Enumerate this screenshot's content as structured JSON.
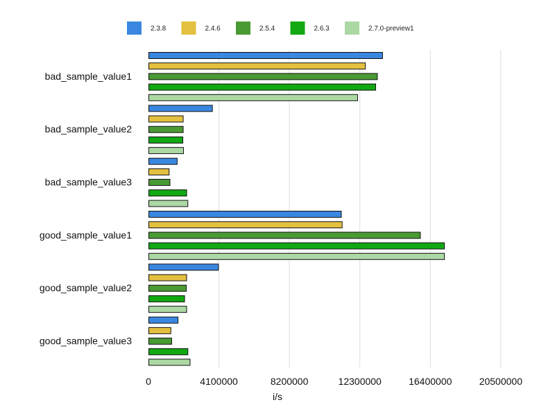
{
  "chart_data": {
    "type": "bar",
    "orientation": "horizontal",
    "title": "",
    "xlabel": "i/s",
    "ylabel": "",
    "xlim": [
      0,
      22000000
    ],
    "xticks": [
      0,
      4100000,
      8200000,
      12300000,
      16400000,
      20500000
    ],
    "xtick_labels": [
      "0",
      "4100000",
      "8200000",
      "12300000",
      "16400000",
      "20500000"
    ],
    "grid": "vertical",
    "legend_position": "top",
    "categories": [
      "bad_sample_value1",
      "bad_sample_value2",
      "bad_sample_value3",
      "good_sample_value1",
      "good_sample_value2",
      "good_sample_value3"
    ],
    "series": [
      {
        "name": "2.3.8",
        "color": "#3a87e0",
        "values": [
          13600000,
          3700000,
          1650000,
          11200000,
          4050000,
          1700000
        ]
      },
      {
        "name": "2.4.6",
        "color": "#e3c040",
        "values": [
          12600000,
          2000000,
          1180000,
          11250000,
          2200000,
          1280000
        ]
      },
      {
        "name": "2.5.4",
        "color": "#4a9a34",
        "values": [
          13300000,
          2000000,
          1230000,
          15800000,
          2180000,
          1330000
        ]
      },
      {
        "name": "2.6.3",
        "color": "#12a812",
        "values": [
          13200000,
          1980000,
          2200000,
          17200000,
          2080000,
          2270000
        ]
      },
      {
        "name": "2.7.0-preview1",
        "color": "#acd8a4",
        "values": [
          12150000,
          2020000,
          2270000,
          17200000,
          2200000,
          2400000
        ]
      }
    ]
  }
}
